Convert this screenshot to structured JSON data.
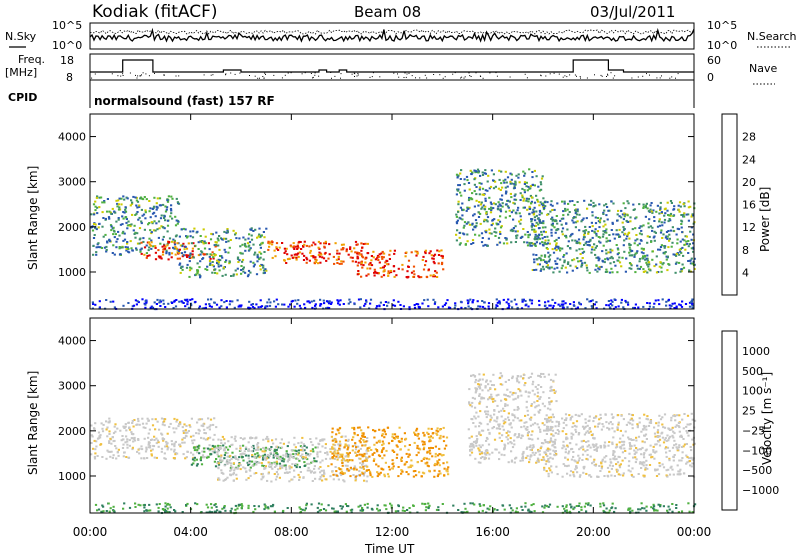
{
  "header": {
    "station": "Kodiak (fitACF)",
    "beam": "Beam 08",
    "date": "03/Jul/2011"
  },
  "noise_panel": {
    "left_label": "N.Sky",
    "right_label": "N.Search",
    "left_ticks": [
      "10^5",
      "10^0"
    ],
    "right_ticks": [
      "10^5",
      "10^0"
    ]
  },
  "freq_panel": {
    "left_label_1": "Freq.",
    "left_label_2": "[MHz]",
    "left_ticks": [
      "18",
      "8"
    ],
    "right_label": "Nave",
    "right_ticks": [
      "60",
      "0"
    ],
    "freq_steps": [
      {
        "t0": 0.0,
        "t1": 1.3,
        "v": 12
      },
      {
        "t0": 1.3,
        "t1": 2.5,
        "v": 18
      },
      {
        "t0": 2.5,
        "t1": 5.3,
        "v": 12
      },
      {
        "t0": 5.3,
        "t1": 6.0,
        "v": 13
      },
      {
        "t0": 6.0,
        "t1": 9.1,
        "v": 12
      },
      {
        "t0": 9.1,
        "t1": 9.4,
        "v": 13
      },
      {
        "t0": 9.4,
        "t1": 9.9,
        "v": 12
      },
      {
        "t0": 9.9,
        "t1": 10.2,
        "v": 13
      },
      {
        "t0": 10.2,
        "t1": 19.2,
        "v": 12
      },
      {
        "t0": 19.2,
        "t1": 20.6,
        "v": 18
      },
      {
        "t0": 20.6,
        "t1": 21.2,
        "v": 13
      },
      {
        "t0": 21.2,
        "t1": 24.0,
        "v": 12
      }
    ]
  },
  "cpid": {
    "label": "CPID",
    "program": "normalsound (fast) 157 RF"
  },
  "chart_data": [
    {
      "type": "heatmap",
      "name": "power-panel",
      "xlabel": "",
      "ylabel": "Slant Range [km]",
      "xlim": [
        0,
        24
      ],
      "ylim": [
        180,
        4500
      ],
      "yticks": [
        "1000",
        "2000",
        "3000",
        "4000"
      ],
      "colorbar": {
        "label": "Power [dB]",
        "ticks": [
          "4",
          "8",
          "12",
          "16",
          "20",
          "24",
          "28"
        ],
        "range": [
          0,
          30
        ],
        "colors": [
          "#0000ff",
          "#2858b0",
          "#3f8f6a",
          "#4fb040",
          "#cccc00",
          "#f0a000",
          "#f05000",
          "#e00000"
        ]
      },
      "regions": [
        {
          "t0": 0.0,
          "t1": 24.0,
          "r0": 200,
          "r1": 420,
          "level": "low"
        },
        {
          "t0": 0.0,
          "t1": 3.5,
          "r0": 1400,
          "r1": 2700,
          "level": "low-med"
        },
        {
          "t0": 2.0,
          "t1": 5.0,
          "r0": 1300,
          "r1": 1700,
          "level": "high"
        },
        {
          "t0": 3.5,
          "t1": 7.0,
          "r0": 900,
          "r1": 2000,
          "level": "low-med"
        },
        {
          "t0": 7.0,
          "t1": 11.0,
          "r0": 1200,
          "r1": 1700,
          "level": "high"
        },
        {
          "t0": 10.5,
          "t1": 14.0,
          "r0": 900,
          "r1": 1500,
          "level": "high"
        },
        {
          "t0": 14.5,
          "t1": 18.0,
          "r0": 1600,
          "r1": 3300,
          "level": "low-med"
        },
        {
          "t0": 17.5,
          "t1": 24.0,
          "r0": 1000,
          "r1": 2600,
          "level": "low-med"
        }
      ]
    },
    {
      "type": "heatmap",
      "name": "velocity-panel",
      "xlabel": "Time UT",
      "ylabel": "Slant Range [km]",
      "xlim": [
        0,
        24
      ],
      "ylim": [
        180,
        4500
      ],
      "xticks": [
        "00:00",
        "04:00",
        "08:00",
        "12:00",
        "16:00",
        "20:00",
        "00:00"
      ],
      "yticks": [
        "1000",
        "2000",
        "3000",
        "4000"
      ],
      "colorbar": {
        "label": "Velocity [m s⁻¹]",
        "ticks": [
          "1000",
          "500",
          "100",
          "25",
          "−25",
          "−100",
          "−500",
          "−1000"
        ],
        "colors": [
          "#1a3fb0",
          "#2f7f5f",
          "#4fb040",
          "#9fd060",
          "#c8c8c8",
          "#f0c040",
          "#f09000",
          "#f05000",
          "#e00000"
        ]
      },
      "regions": [
        {
          "t0": 0.0,
          "t1": 24.0,
          "r0": 200,
          "r1": 420,
          "level": "positive"
        },
        {
          "t0": 0.0,
          "t1": 5.0,
          "r0": 1400,
          "r1": 2300,
          "level": "near-zero"
        },
        {
          "t0": 4.0,
          "t1": 9.0,
          "r0": 1200,
          "r1": 1700,
          "level": "positive"
        },
        {
          "t0": 5.0,
          "t1": 11.0,
          "r0": 900,
          "r1": 1900,
          "level": "near-zero"
        },
        {
          "t0": 9.5,
          "t1": 14.2,
          "r0": 1000,
          "r1": 2100,
          "level": "negative"
        },
        {
          "t0": 15.0,
          "t1": 18.5,
          "r0": 1300,
          "r1": 3300,
          "level": "near-zero"
        },
        {
          "t0": 18.0,
          "t1": 24.0,
          "r0": 1000,
          "r1": 2400,
          "level": "near-zero"
        }
      ]
    }
  ]
}
